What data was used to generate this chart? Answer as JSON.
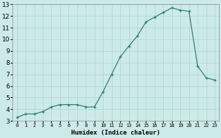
{
  "x": [
    0,
    1,
    2,
    3,
    4,
    5,
    6,
    7,
    8,
    9,
    10,
    11,
    12,
    13,
    14,
    15,
    16,
    17,
    18,
    19,
    20,
    21,
    22,
    23
  ],
  "y": [
    3.3,
    3.6,
    3.6,
    3.8,
    4.2,
    4.4,
    4.4,
    4.4,
    4.2,
    4.2,
    5.5,
    7.0,
    8.5,
    9.4,
    10.3,
    11.5,
    11.9,
    12.3,
    12.7,
    12.5,
    12.4,
    7.7,
    6.7,
    6.5
  ],
  "xlabel": "Humidex (Indice chaleur)",
  "line_color": "#2e7d6e",
  "bg_color": "#cceae8",
  "grid_color": "#b0d8d5",
  "xlim": [
    -0.5,
    23.5
  ],
  "ylim": [
    3,
    13
  ],
  "yticks": [
    3,
    4,
    5,
    6,
    7,
    8,
    9,
    10,
    11,
    12,
    13
  ],
  "xtick_labels": [
    "0",
    "1",
    "2",
    "3",
    "4",
    "5",
    "6",
    "7",
    "8",
    "9",
    "10",
    "11",
    "12",
    "13",
    "14",
    "15",
    "16",
    "17",
    "18",
    "19",
    "20",
    "21",
    "22",
    "23"
  ]
}
